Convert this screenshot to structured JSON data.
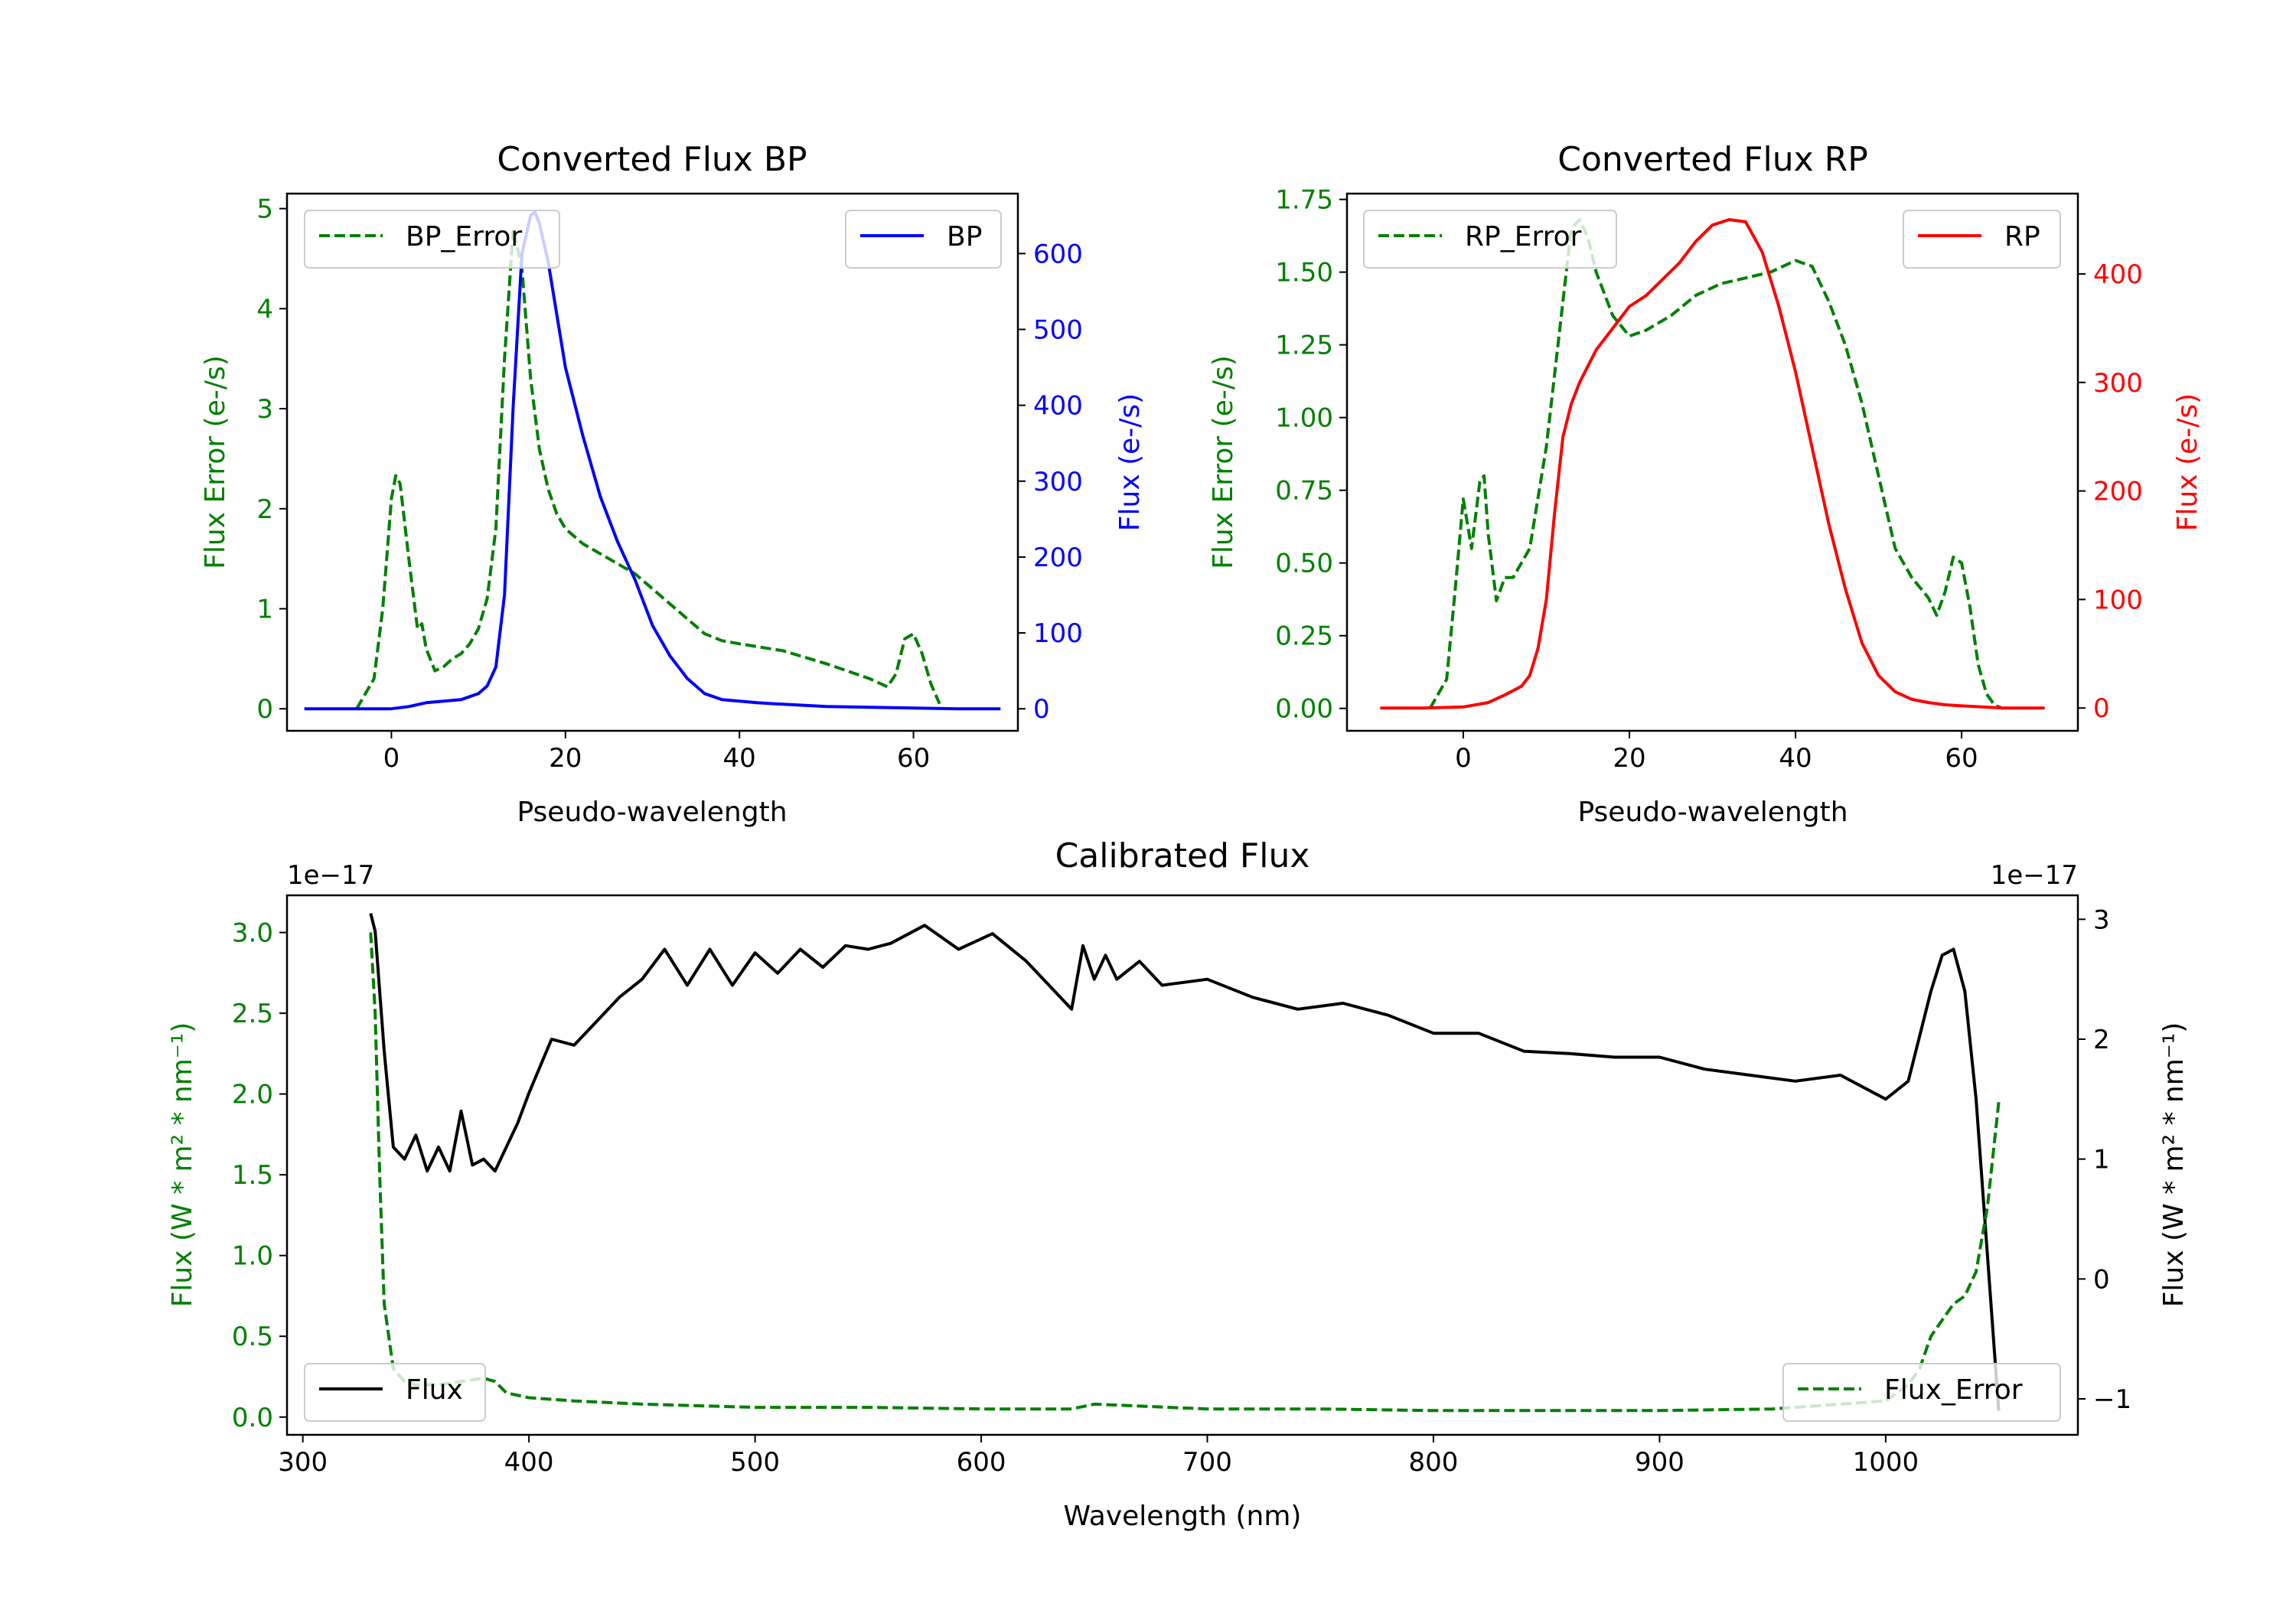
{
  "chart_data": [
    {
      "id": "bp",
      "type": "line",
      "title": "Converted Flux BP",
      "xlabel": "Pseudo-wavelength",
      "ylabel_left": "Flux Error (e-/s)",
      "ylabel_right": "Flux (e-/s)",
      "xlim": [
        -12,
        72
      ],
      "ylim_left": [
        -0.22,
        5.15
      ],
      "ylim_right": [
        -29,
        679
      ],
      "xticks": [
        0,
        20,
        40,
        60
      ],
      "yticks_left": [
        0,
        1,
        2,
        3,
        4,
        5
      ],
      "yticks_right": [
        0,
        100,
        200,
        300,
        400,
        500,
        600
      ],
      "colors": {
        "left": "#008000",
        "right": "#0000ff"
      },
      "series": [
        {
          "name": "BP_Error",
          "axis": "left",
          "style": "dashed",
          "color": "#008000",
          "x": [
            -4,
            -2,
            -1,
            0,
            0.5,
            1,
            2,
            3,
            3.5,
            4,
            5,
            6,
            7,
            8,
            9,
            10,
            11,
            12,
            13,
            14,
            15,
            16,
            17,
            18,
            19,
            20,
            22,
            24,
            26,
            28,
            30,
            32,
            34,
            36,
            38,
            40,
            45,
            50,
            55,
            57,
            58,
            59,
            60,
            61,
            62,
            63
          ],
          "y": [
            0,
            0.3,
            1.0,
            2.1,
            2.33,
            2.25,
            1.5,
            0.8,
            0.85,
            0.6,
            0.38,
            0.42,
            0.5,
            0.55,
            0.65,
            0.8,
            1.1,
            1.8,
            3.5,
            4.8,
            4.4,
            3.3,
            2.6,
            2.2,
            1.95,
            1.8,
            1.65,
            1.55,
            1.45,
            1.35,
            1.2,
            1.05,
            0.9,
            0.75,
            0.68,
            0.65,
            0.58,
            0.45,
            0.3,
            0.22,
            0.35,
            0.7,
            0.75,
            0.55,
            0.25,
            0.05
          ]
        },
        {
          "name": "BP",
          "axis": "right",
          "style": "solid",
          "color": "#0000ff",
          "x": [
            -10,
            -5,
            0,
            2,
            4,
            6,
            8,
            10,
            11,
            12,
            13,
            14,
            15,
            16,
            16.5,
            17,
            18,
            20,
            22,
            24,
            26,
            28,
            30,
            32,
            34,
            36,
            38,
            40,
            42,
            45,
            50,
            55,
            60,
            65,
            70
          ],
          "y": [
            0,
            0,
            0,
            3,
            8,
            10,
            12,
            20,
            30,
            55,
            150,
            400,
            600,
            650,
            655,
            640,
            590,
            450,
            360,
            280,
            220,
            170,
            110,
            70,
            40,
            20,
            12,
            10,
            8,
            6,
            3,
            2,
            1,
            0,
            0
          ]
        }
      ],
      "legend": [
        {
          "label": "BP_Error",
          "position": "upper left"
        },
        {
          "label": "BP",
          "position": "upper right"
        }
      ]
    },
    {
      "id": "rp",
      "type": "line",
      "title": "Converted Flux RP",
      "xlabel": "Pseudo-wavelength",
      "ylabel_left": "Flux Error (e-/s)",
      "ylabel_right": "Flux (e-/s)",
      "xlim": [
        -14,
        74
      ],
      "ylim_left": [
        -0.077,
        1.77
      ],
      "ylim_right": [
        -21,
        474
      ],
      "xticks": [
        0,
        20,
        40,
        60
      ],
      "yticks_left": [
        0.0,
        0.25,
        0.5,
        0.75,
        1.0,
        1.25,
        1.5,
        1.75
      ],
      "yticks_right": [
        0,
        100,
        200,
        300,
        400
      ],
      "yticklabels_left": [
        "0.00",
        "0.25",
        "0.50",
        "0.75",
        "1.00",
        "1.25",
        "1.50",
        "1.75"
      ],
      "colors": {
        "left": "#008000",
        "right": "#ff0000"
      },
      "series": [
        {
          "name": "RP_Error",
          "axis": "left",
          "style": "dashed",
          "color": "#008000",
          "x": [
            -4,
            -2,
            -1,
            0,
            1,
            2,
            2.5,
            3,
            4,
            5,
            6,
            8,
            10,
            12,
            13,
            14,
            15,
            16,
            18,
            20,
            22,
            25,
            28,
            31,
            34,
            37,
            40,
            42,
            44,
            46,
            48,
            50,
            52,
            54,
            56,
            57,
            58,
            59,
            60,
            61,
            62,
            63,
            64,
            65
          ],
          "y": [
            0,
            0.1,
            0.4,
            0.72,
            0.55,
            0.78,
            0.8,
            0.6,
            0.37,
            0.45,
            0.45,
            0.55,
            0.9,
            1.4,
            1.65,
            1.68,
            1.62,
            1.5,
            1.35,
            1.28,
            1.3,
            1.35,
            1.42,
            1.46,
            1.48,
            1.5,
            1.54,
            1.52,
            1.4,
            1.25,
            1.05,
            0.8,
            0.55,
            0.45,
            0.38,
            0.32,
            0.4,
            0.52,
            0.5,
            0.35,
            0.15,
            0.05,
            0.01,
            0
          ]
        },
        {
          "name": "RP",
          "axis": "right",
          "style": "solid",
          "color": "#ff0000",
          "x": [
            -10,
            -5,
            0,
            3,
            5,
            7,
            8,
            9,
            10,
            11,
            12,
            13,
            14,
            16,
            18,
            20,
            22,
            24,
            26,
            28,
            30,
            32,
            34,
            36,
            38,
            40,
            42,
            44,
            46,
            48,
            50,
            52,
            54,
            56,
            58,
            60,
            65,
            70
          ],
          "y": [
            0,
            0,
            1,
            5,
            12,
            20,
            30,
            55,
            100,
            180,
            250,
            280,
            300,
            330,
            350,
            370,
            380,
            395,
            410,
            430,
            445,
            450,
            448,
            420,
            370,
            310,
            240,
            170,
            110,
            60,
            30,
            15,
            8,
            5,
            3,
            2,
            0,
            0
          ]
        }
      ],
      "legend": [
        {
          "label": "RP_Error",
          "position": "upper left"
        },
        {
          "label": "RP",
          "position": "upper right"
        }
      ]
    },
    {
      "id": "cal",
      "type": "line",
      "title": "Calibrated Flux",
      "xlabel": "Wavelength (nm)",
      "ylabel_left": "Flux (W * m² * nm⁻¹)",
      "ylabel_right": "Flux (W * m² * nm⁻¹)",
      "offset_left": "1e−17",
      "offset_right": "1e−17",
      "xlim": [
        293,
        1085
      ],
      "ylim_left": [
        -0.11,
        3.23
      ],
      "ylim_right": [
        -1.3,
        3.2
      ],
      "xticks": [
        300,
        400,
        500,
        600,
        700,
        800,
        900,
        1000
      ],
      "yticks_left": [
        0.0,
        0.5,
        1.0,
        1.5,
        2.0,
        2.5,
        3.0
      ],
      "yticklabels_left": [
        "0.0",
        "0.5",
        "1.0",
        "1.5",
        "2.0",
        "2.5",
        "3.0"
      ],
      "yticks_right": [
        -1,
        0,
        1,
        2,
        3
      ],
      "yticklabels_right": [
        "−1",
        "0",
        "1",
        "2",
        "3"
      ],
      "colors": {
        "left": "#008000",
        "right": "#000000"
      },
      "series": [
        {
          "name": "Flux",
          "axis": "right",
          "style": "solid",
          "color": "#000000",
          "x": [
            330,
            332,
            336,
            340,
            345,
            350,
            355,
            360,
            365,
            370,
            375,
            380,
            385,
            390,
            395,
            400,
            410,
            420,
            430,
            440,
            450,
            460,
            470,
            480,
            490,
            500,
            510,
            520,
            530,
            540,
            550,
            560,
            575,
            590,
            605,
            620,
            640,
            645,
            650,
            655,
            660,
            670,
            680,
            700,
            720,
            740,
            760,
            780,
            800,
            820,
            840,
            860,
            880,
            900,
            920,
            940,
            960,
            980,
            1000,
            1010,
            1020,
            1025,
            1030,
            1035,
            1040,
            1045,
            1050
          ],
          "y": [
            3.05,
            2.9,
            1.9,
            1.1,
            1.0,
            1.2,
            0.9,
            1.1,
            0.9,
            1.4,
            0.95,
            1.0,
            0.9,
            1.1,
            1.3,
            1.55,
            2.0,
            1.95,
            2.15,
            2.35,
            2.5,
            2.75,
            2.45,
            2.75,
            2.45,
            2.72,
            2.55,
            2.75,
            2.6,
            2.78,
            2.75,
            2.8,
            2.95,
            2.75,
            2.88,
            2.65,
            2.25,
            2.78,
            2.5,
            2.7,
            2.5,
            2.65,
            2.45,
            2.5,
            2.35,
            2.25,
            2.3,
            2.2,
            2.05,
            2.05,
            1.9,
            1.88,
            1.85,
            1.85,
            1.75,
            1.7,
            1.65,
            1.7,
            1.5,
            1.65,
            2.4,
            2.7,
            2.75,
            2.4,
            1.5,
            0.2,
            -1.1
          ]
        },
        {
          "name": "Flux_Error",
          "axis": "left",
          "style": "dashed",
          "color": "#008000",
          "x": [
            330,
            332,
            334,
            336,
            340,
            345,
            350,
            360,
            370,
            380,
            385,
            390,
            400,
            420,
            450,
            500,
            550,
            600,
            640,
            650,
            700,
            750,
            800,
            850,
            900,
            950,
            1000,
            1010,
            1015,
            1020,
            1025,
            1030,
            1035,
            1040,
            1045,
            1050
          ],
          "y": [
            3.0,
            2.5,
            1.5,
            0.7,
            0.3,
            0.22,
            0.2,
            0.2,
            0.22,
            0.24,
            0.22,
            0.15,
            0.12,
            0.1,
            0.08,
            0.06,
            0.06,
            0.05,
            0.05,
            0.08,
            0.05,
            0.05,
            0.04,
            0.04,
            0.04,
            0.05,
            0.1,
            0.2,
            0.3,
            0.5,
            0.6,
            0.7,
            0.75,
            0.9,
            1.3,
            1.95
          ]
        }
      ],
      "legend": [
        {
          "label": "Flux",
          "position": "lower left"
        },
        {
          "label": "Flux_Error",
          "position": "lower right"
        }
      ]
    }
  ]
}
